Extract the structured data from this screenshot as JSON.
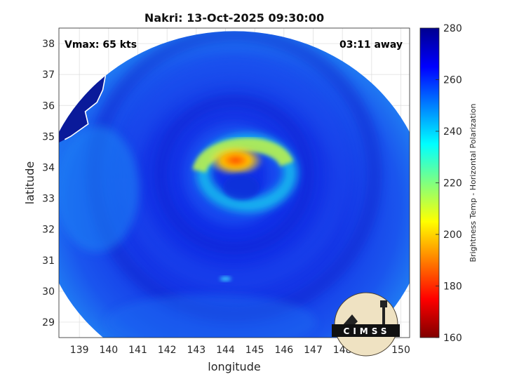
{
  "chart_data": {
    "type": "heatmap",
    "title": "Nakri: 13-Oct-2025 09:30:00",
    "xlabel": "longitude",
    "ylabel": "latitude",
    "xlim": [
      138.3,
      150.3
    ],
    "ylim": [
      28.5,
      38.5
    ],
    "x_ticks": [
      139,
      140,
      141,
      142,
      143,
      144,
      145,
      146,
      147,
      148,
      149,
      150
    ],
    "y_ticks": [
      29,
      30,
      31,
      32,
      33,
      34,
      35,
      36,
      37,
      38
    ],
    "grid": true,
    "annotations": {
      "vmax": "Vmax: 65 kts",
      "time_away": "03:11 away"
    },
    "colorbar": {
      "label": "Brightness Temp - Horizontal Polarization",
      "min": 160,
      "max": 280,
      "ticks": [
        160,
        180,
        200,
        220,
        240,
        260,
        280
      ],
      "colormap": "jet"
    },
    "swath": {
      "center_lon": 144.3,
      "center_lat": 32.7,
      "radius_deg_lat": 5.7
    },
    "storm_center": {
      "lon": 144.3,
      "lat": 34.0
    },
    "warmest_core_temp_approx": 180,
    "background_temp_approx": 260,
    "logo": "CIMSS"
  }
}
